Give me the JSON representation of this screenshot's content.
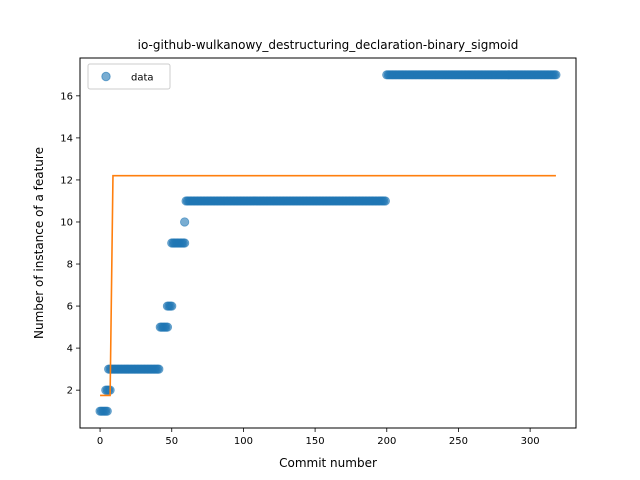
{
  "chart_data": {
    "type": "scatter",
    "title": "io-github-wulkanowy_destructuring_declaration-binary_sigmoid",
    "xlabel": "Commit number",
    "ylabel": "Number of instance of a feature",
    "xlim": [
      -14,
      332
    ],
    "ylim": [
      0.2,
      17.8
    ],
    "xticks": [
      0,
      50,
      100,
      150,
      200,
      250,
      300
    ],
    "yticks": [
      2,
      4,
      6,
      8,
      10,
      12,
      14,
      16
    ],
    "grid": false,
    "legend_position": "upper-left",
    "series": [
      {
        "name": "data",
        "kind": "scatter",
        "color": "#1f77b4",
        "segments": [
          {
            "x_from": 0,
            "x_to": 5,
            "y": 1
          },
          {
            "x_from": 4,
            "x_to": 7,
            "y": 2
          },
          {
            "x_from": 6,
            "x_to": 41,
            "y": 3
          },
          {
            "x_from": 42,
            "x_to": 47,
            "y": 5
          },
          {
            "x_from": 47,
            "x_to": 50,
            "y": 6
          },
          {
            "x_from": 50,
            "x_to": 59,
            "y": 9
          },
          {
            "x_from": 59,
            "x_to": 59,
            "y": 10
          },
          {
            "x_from": 60,
            "x_to": 199,
            "y": 11
          },
          {
            "x_from": 200,
            "x_to": 318,
            "y": 17
          }
        ]
      },
      {
        "kind": "line",
        "color": "#ff7f0e",
        "x": [
          0,
          7,
          9,
          318
        ],
        "y": [
          1.75,
          1.75,
          12.2,
          12.2
        ]
      }
    ]
  }
}
